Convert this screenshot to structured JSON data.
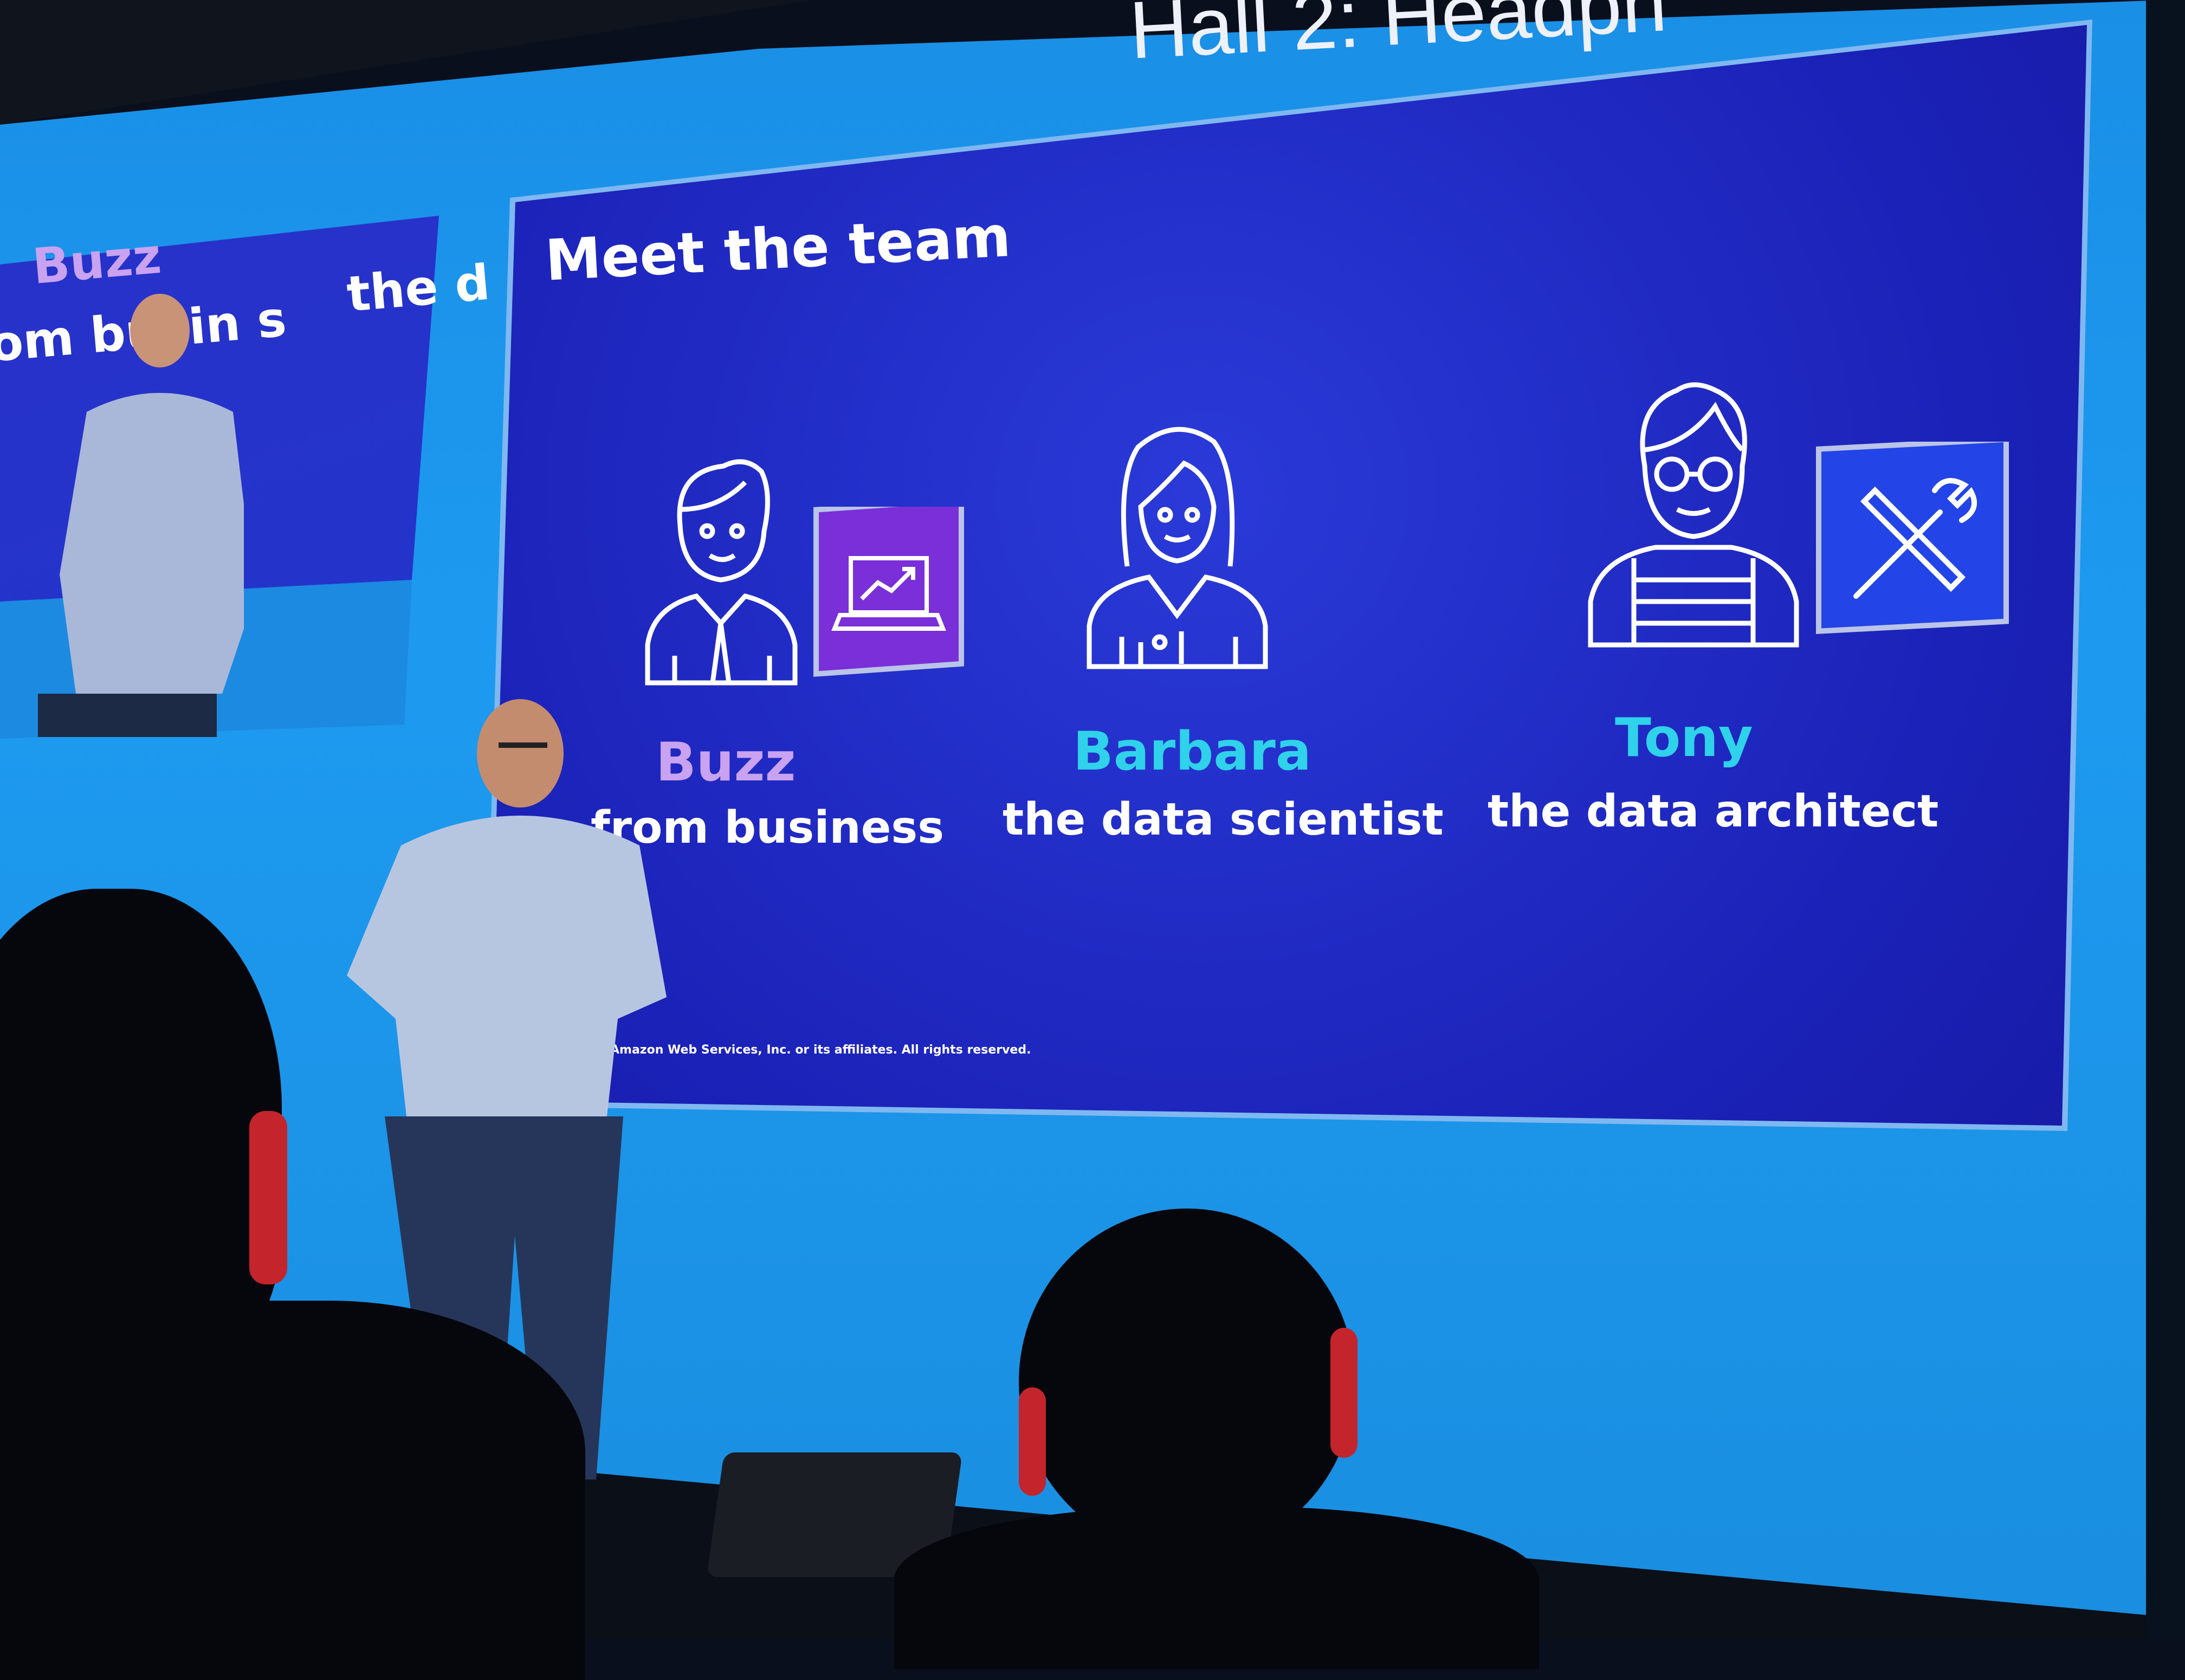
{
  "venue": {
    "hall_sign": "Hall 2: Headph"
  },
  "slide": {
    "title": "Meet the team",
    "members": [
      {
        "name": "Buzz",
        "role": "from business",
        "name_color": "#c9a2f2",
        "badge_icon": "laptop-chart-icon",
        "badge_color": "#7a2fd8"
      },
      {
        "name": "Barbara",
        "role": "the data scientist",
        "name_color": "#2fd2ea"
      },
      {
        "name": "Tony",
        "role": "the data architect",
        "name_color": "#2fd2ea",
        "badge_icon": "wrench-screwdriver-icon",
        "badge_color": "#2344e6"
      }
    ],
    "copyright": "Amazon Web Services, Inc. or its affiliates. All rights reserved."
  },
  "side_monitor": {
    "fragments": [
      "Buzz",
      "om busin s",
      "the d"
    ]
  },
  "colors": {
    "wall": "#1d9af0",
    "slide_bg": "#1b22b8"
  }
}
